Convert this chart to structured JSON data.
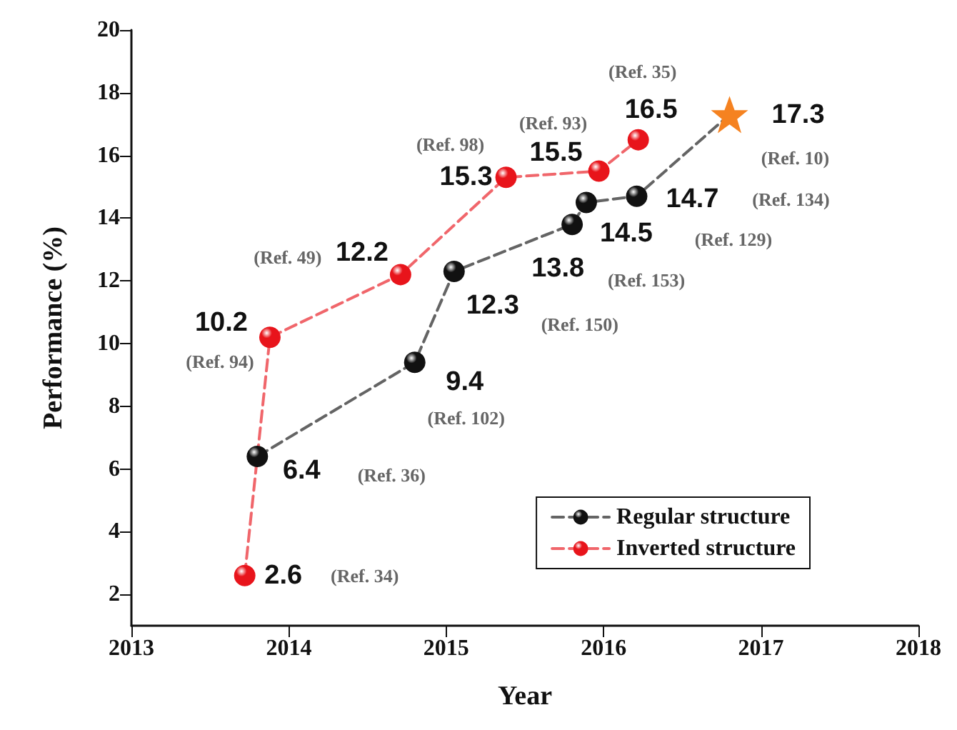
{
  "chart_data": {
    "type": "line",
    "xlabel": "Year",
    "ylabel": "Performance (%)",
    "xlim": [
      2013,
      2018
    ],
    "xticks": [
      2013,
      2014,
      2015,
      2016,
      2017,
      2018
    ],
    "ylim": [
      1,
      20
    ],
    "yticks": [
      2,
      4,
      6,
      8,
      10,
      12,
      14,
      16,
      18,
      20
    ],
    "grid": false,
    "legend": "bottom right",
    "line_style": "dashed",
    "data_labels": true,
    "series": [
      {
        "name": "Regular structure",
        "color": "#111111",
        "marker": [
          "circle",
          "circle",
          "circle",
          "circle",
          "circle",
          "circle",
          "star"
        ],
        "colors": [
          "#111111",
          "#111111",
          "#111111",
          "#111111",
          "#111111",
          "#111111",
          "#f58220"
        ],
        "x": [
          2013.8,
          2014.8,
          2015.05,
          2015.8,
          2015.89,
          2016.21,
          2016.8
        ],
        "values": [
          6.4,
          9.4,
          12.3,
          13.8,
          14.5,
          14.7,
          17.3
        ]
      },
      {
        "name": "Inverted structure",
        "color": "#e8141b",
        "marker": "circle",
        "x": [
          2013.72,
          2013.88,
          2014.71,
          2015.38,
          2015.97,
          2016.22
        ],
        "values": [
          2.6,
          10.2,
          12.2,
          15.3,
          15.5,
          16.5
        ]
      }
    ],
    "annotations": [
      "(Ref. 36)",
      "(Ref. 102)",
      "(Ref. 150)",
      "(Ref. 153)",
      "(Ref. 129)",
      "(Ref. 134)",
      "(Ref. 10)",
      "(Ref. 34)",
      "(Ref. 94)",
      "(Ref. 49)",
      "(Ref. 98)",
      "(Ref. 93)",
      "(Ref. 35)"
    ]
  }
}
